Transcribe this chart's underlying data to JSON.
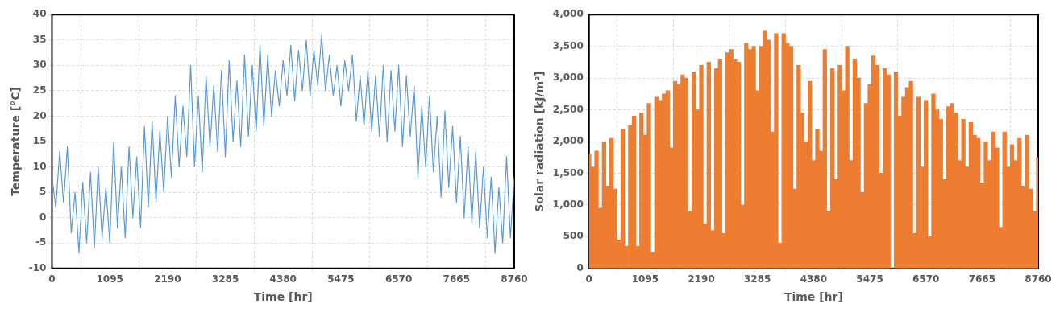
{
  "chart_data": [
    {
      "type": "line",
      "xlabel": "Time [hr]",
      "ylabel": "Temperature [°C]",
      "color": "#5b9bd5",
      "grid": true,
      "marker": "none",
      "x": [
        0,
        73,
        146,
        219,
        292,
        365,
        438,
        511,
        584,
        657,
        730,
        803,
        876,
        949,
        1022,
        1095,
        1168,
        1241,
        1314,
        1387,
        1460,
        1533,
        1606,
        1679,
        1752,
        1825,
        1898,
        1971,
        2044,
        2117,
        2190,
        2263,
        2336,
        2409,
        2482,
        2555,
        2628,
        2701,
        2774,
        2847,
        2920,
        2993,
        3066,
        3139,
        3212,
        3285,
        3358,
        3431,
        3504,
        3577,
        3650,
        3723,
        3796,
        3869,
        3942,
        4015,
        4088,
        4161,
        4234,
        4307,
        4380,
        4453,
        4526,
        4599,
        4672,
        4745,
        4818,
        4891,
        4964,
        5037,
        5110,
        5183,
        5256,
        5329,
        5402,
        5475,
        5548,
        5621,
        5694,
        5767,
        5840,
        5913,
        5986,
        6059,
        6132,
        6205,
        6278,
        6351,
        6424,
        6497,
        6570,
        6643,
        6716,
        6789,
        6862,
        6935,
        7008,
        7081,
        7154,
        7227,
        7300,
        7373,
        7446,
        7519,
        7592,
        7665,
        7738,
        7811,
        7884,
        7957,
        8030,
        8103,
        8176,
        8249,
        8322,
        8395,
        8468,
        8541,
        8614,
        8687,
        8760
      ],
      "values": [
        8,
        2,
        13,
        3,
        14,
        -3,
        5,
        -7,
        7,
        -5,
        9,
        -6,
        10,
        -4,
        6,
        -5,
        15,
        -2,
        10,
        -4,
        14,
        0,
        12,
        -2,
        18,
        2,
        19,
        3,
        17,
        5,
        20,
        8,
        24,
        10,
        22,
        12,
        30,
        10,
        24,
        9,
        28,
        14,
        26,
        13,
        29,
        12,
        31,
        15,
        27,
        14,
        32,
        16,
        30,
        17,
        34,
        18,
        32,
        20,
        29,
        22,
        31,
        24,
        34,
        23,
        33,
        25,
        35,
        24,
        33,
        26,
        36,
        25,
        32,
        24,
        30,
        22,
        31,
        25,
        32,
        19,
        28,
        18,
        29,
        17,
        28,
        16,
        30,
        15,
        29,
        17,
        30,
        14,
        28,
        16,
        26,
        8,
        22,
        10,
        24,
        9,
        20,
        4,
        21,
        6,
        18,
        3,
        16,
        0,
        14,
        -1,
        13,
        -2,
        10,
        -4,
        8,
        -7,
        6,
        -5,
        12,
        -4,
        8
      ],
      "xlim": [
        0,
        8760
      ],
      "xticks": [
        0,
        1095,
        2190,
        3285,
        4380,
        5475,
        6570,
        7665,
        8760
      ],
      "ylim": [
        -10,
        40
      ],
      "yticks": [
        -10,
        -5,
        0,
        5,
        10,
        15,
        20,
        25,
        30,
        35,
        40
      ]
    },
    {
      "type": "bar",
      "xlabel": "Time [hr]",
      "ylabel": "Solar radiation [kJ/m²]",
      "color": "#ed7d31",
      "grid": true,
      "x": [
        0,
        73,
        146,
        219,
        292,
        365,
        438,
        511,
        584,
        657,
        730,
        803,
        876,
        949,
        1022,
        1095,
        1168,
        1241,
        1314,
        1387,
        1460,
        1533,
        1606,
        1679,
        1752,
        1825,
        1898,
        1971,
        2044,
        2117,
        2190,
        2263,
        2336,
        2409,
        2482,
        2555,
        2628,
        2701,
        2774,
        2847,
        2920,
        2993,
        3066,
        3139,
        3212,
        3285,
        3358,
        3431,
        3504,
        3577,
        3650,
        3723,
        3796,
        3869,
        3942,
        4015,
        4088,
        4161,
        4234,
        4307,
        4380,
        4453,
        4526,
        4599,
        4672,
        4745,
        4818,
        4891,
        4964,
        5037,
        5110,
        5183,
        5256,
        5329,
        5402,
        5475,
        5548,
        5621,
        5694,
        5767,
        5840,
        5913,
        5986,
        6059,
        6132,
        6205,
        6278,
        6351,
        6424,
        6497,
        6570,
        6643,
        6716,
        6789,
        6862,
        6935,
        7008,
        7081,
        7154,
        7227,
        7300,
        7373,
        7446,
        7519,
        7592,
        7665,
        7738,
        7811,
        7884,
        7957,
        8030,
        8103,
        8176,
        8249,
        8322,
        8395,
        8468,
        8541,
        8614,
        8687,
        8760
      ],
      "values": [
        1800,
        1600,
        1850,
        950,
        2000,
        1300,
        2050,
        1250,
        450,
        2200,
        350,
        2250,
        2400,
        350,
        2450,
        2100,
        2600,
        250,
        2700,
        2650,
        2750,
        2800,
        1900,
        2950,
        2900,
        3050,
        3000,
        900,
        3100,
        2500,
        3200,
        700,
        3250,
        600,
        3150,
        3300,
        550,
        3400,
        3450,
        3300,
        3250,
        1000,
        3550,
        3450,
        3500,
        2800,
        3500,
        3750,
        3600,
        2150,
        3700,
        400,
        3700,
        3550,
        3500,
        1250,
        3200,
        2450,
        2000,
        2950,
        1700,
        2200,
        1850,
        3450,
        900,
        3150,
        1400,
        3200,
        2800,
        3500,
        1700,
        3300,
        3000,
        1200,
        2600,
        2900,
        3350,
        3200,
        1500,
        3150,
        3050,
        0,
        3100,
        2400,
        2700,
        2850,
        2950,
        550,
        2700,
        1600,
        2650,
        500,
        2750,
        2500,
        2350,
        1400,
        2550,
        2600,
        2450,
        1700,
        2350,
        1600,
        2300,
        2100,
        2050,
        1350,
        2000,
        1700,
        2150,
        1900,
        650,
        2150,
        1600,
        1950,
        1700,
        2050,
        1300,
        2100,
        1250,
        900,
        1750
      ],
      "xlim": [
        0,
        8760
      ],
      "xticks": [
        0,
        1095,
        2190,
        3285,
        4380,
        5475,
        6570,
        7665,
        8760
      ],
      "ylim": [
        0,
        4000
      ],
      "yticks": [
        0,
        {
          "value": 500,
          "label": "500"
        },
        {
          "value": 1000,
          "label": "1,000"
        },
        {
          "value": 1500,
          "label": "1,500"
        },
        {
          "value": 2000,
          "label": "2,000"
        },
        {
          "value": 2500,
          "label": "2,500"
        },
        {
          "value": 3000,
          "label": "3,000"
        },
        {
          "value": 3500,
          "label": "3,500"
        },
        {
          "value": 4000,
          "label": "4,000"
        }
      ]
    }
  ]
}
